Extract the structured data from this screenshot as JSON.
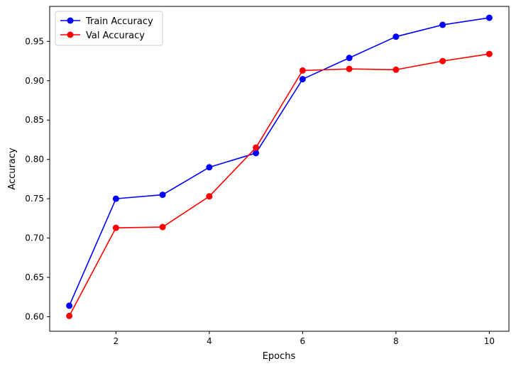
{
  "chart_data": {
    "type": "line",
    "title": "",
    "xlabel": "Epochs",
    "ylabel": "Accuracy",
    "xlim": [
      0.58,
      10.42
    ],
    "ylim": [
      0.5815,
      0.9945
    ],
    "x_ticks": [
      2,
      4,
      6,
      8,
      10
    ],
    "y_ticks": [
      0.6,
      0.65,
      0.7,
      0.75,
      0.8,
      0.85,
      0.9,
      0.95
    ],
    "grid": false,
    "legend_position": "upper-left",
    "x": [
      1,
      2,
      3,
      4,
      5,
      6,
      7,
      8,
      9,
      10
    ],
    "series": [
      {
        "name": "Train Accuracy",
        "color": "#0000ff",
        "marker": "circle",
        "values": [
          0.614,
          0.75,
          0.755,
          0.79,
          0.808,
          0.902,
          0.929,
          0.956,
          0.971,
          0.98
        ]
      },
      {
        "name": "Val Accuracy",
        "color": "#ff0000",
        "marker": "circle",
        "values": [
          0.601,
          0.713,
          0.714,
          0.753,
          0.815,
          0.913,
          0.915,
          0.914,
          0.925,
          0.934
        ]
      }
    ]
  }
}
